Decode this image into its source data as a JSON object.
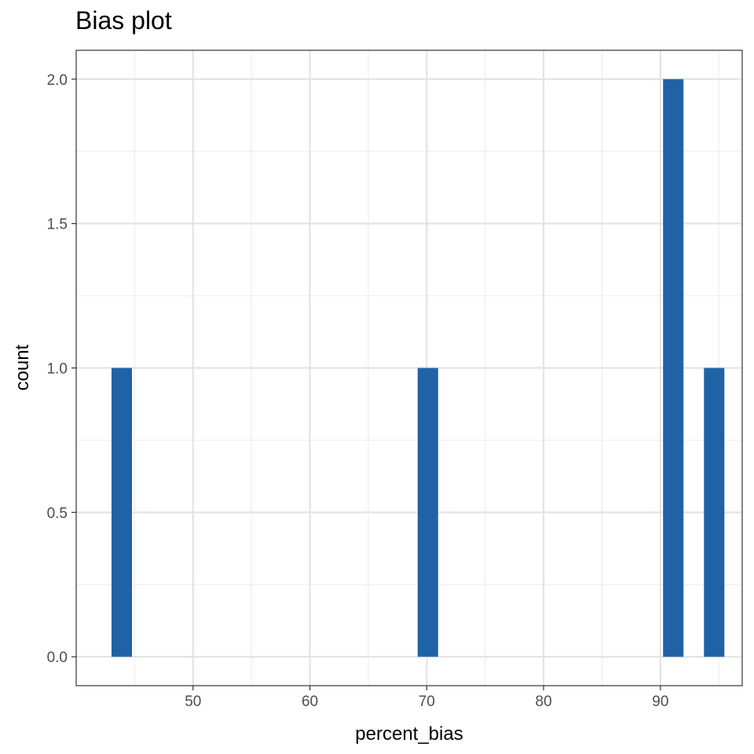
{
  "chart_data": {
    "type": "bar",
    "title": "Bias plot",
    "xlabel": "percent_bias",
    "ylabel": "count",
    "xlim": [
      40,
      97
    ],
    "ylim": [
      0,
      2
    ],
    "x_ticks": [
      50,
      60,
      70,
      80,
      90
    ],
    "y_ticks": [
      0.0,
      0.5,
      1.0,
      1.5,
      2.0
    ],
    "x_tick_labels": [
      "50",
      "60",
      "70",
      "80",
      "90"
    ],
    "y_tick_labels": [
      "0.0",
      "0.5",
      "1.0",
      "1.5",
      "2.0"
    ],
    "bin_width": 1.75,
    "bars": [
      {
        "x": 43.9,
        "count": 1
      },
      {
        "x": 70.1,
        "count": 1
      },
      {
        "x": 91.1,
        "count": 2
      },
      {
        "x": 94.6,
        "count": 1
      }
    ],
    "grid": true,
    "legend": "none",
    "bar_color": "#1f63a6"
  }
}
